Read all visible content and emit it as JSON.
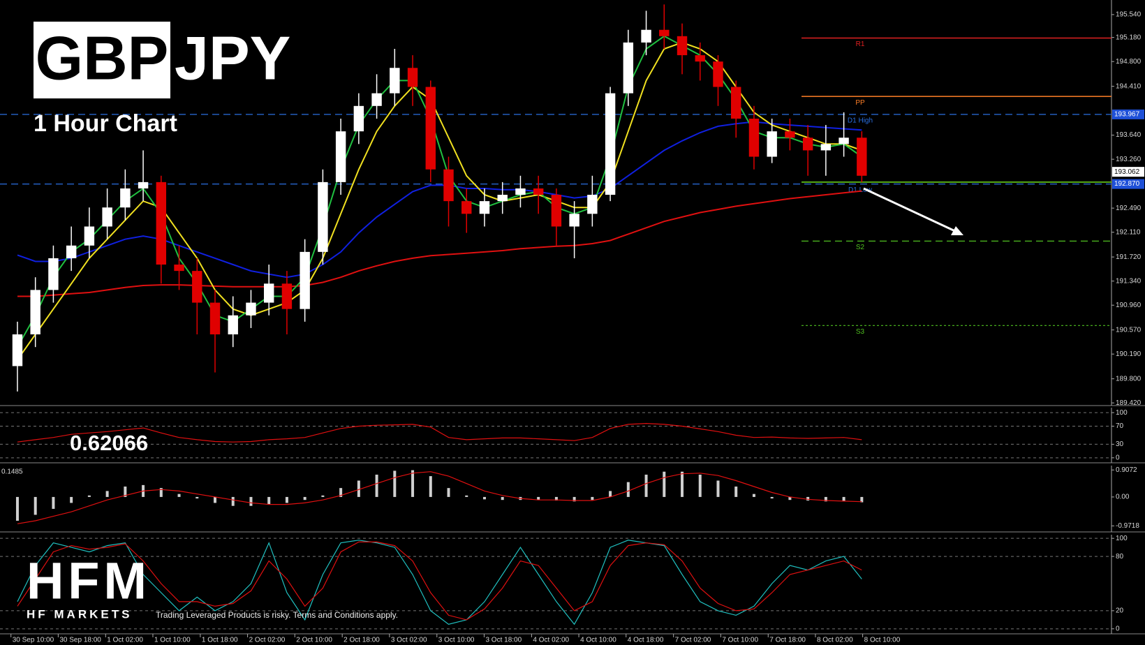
{
  "chart_data": [
    {
      "type": "candlestick",
      "open": [
        190.0,
        190.5,
        191.2,
        191.7,
        191.9,
        192.2,
        192.5,
        192.8,
        192.9,
        191.6,
        191.5,
        191.0,
        190.5,
        190.8,
        191.0,
        191.3,
        190.9,
        191.8,
        192.9,
        193.7,
        194.1,
        194.3,
        194.7,
        194.4,
        193.1,
        192.6,
        192.4,
        192.6,
        192.7,
        192.8,
        192.7,
        192.2,
        192.4,
        192.7,
        194.3,
        195.1,
        195.3,
        195.2,
        194.9,
        194.8,
        194.4,
        193.9,
        193.3,
        193.7,
        193.6,
        193.4,
        193.5,
        193.6
      ],
      "high": [
        190.7,
        191.4,
        191.9,
        192.2,
        192.5,
        192.8,
        193.1,
        193.4,
        193.0,
        191.9,
        191.7,
        191.2,
        191.1,
        191.2,
        191.6,
        191.5,
        192.0,
        193.1,
        193.9,
        194.3,
        194.6,
        195.0,
        194.9,
        194.5,
        193.3,
        192.8,
        192.8,
        192.9,
        193.0,
        193.0,
        192.8,
        192.6,
        193.0,
        194.4,
        195.3,
        195.6,
        195.7,
        195.4,
        195.1,
        194.9,
        194.5,
        194.1,
        193.9,
        193.9,
        193.8,
        193.8,
        194.0,
        193.7
      ],
      "low": [
        189.6,
        190.3,
        191.0,
        191.5,
        191.7,
        192.0,
        192.3,
        192.6,
        191.3,
        191.2,
        190.5,
        189.9,
        190.3,
        190.6,
        190.8,
        190.5,
        190.7,
        191.6,
        192.7,
        193.5,
        193.9,
        194.1,
        194.1,
        192.9,
        192.2,
        192.1,
        192.2,
        192.4,
        192.5,
        192.4,
        191.9,
        191.7,
        192.2,
        192.6,
        194.1,
        194.9,
        195.0,
        194.6,
        194.5,
        194.1,
        193.6,
        193.1,
        193.2,
        193.4,
        193.0,
        193.0,
        193.3,
        192.9
      ],
      "close": [
        190.5,
        191.2,
        191.7,
        191.9,
        192.2,
        192.5,
        192.8,
        192.9,
        191.6,
        191.5,
        191.0,
        190.5,
        190.8,
        191.0,
        191.3,
        190.9,
        191.8,
        192.9,
        193.7,
        194.1,
        194.3,
        194.7,
        194.4,
        193.1,
        192.6,
        192.4,
        192.6,
        192.7,
        192.8,
        192.7,
        192.2,
        192.4,
        192.7,
        194.3,
        195.1,
        195.3,
        195.2,
        194.9,
        194.8,
        194.4,
        193.9,
        193.3,
        193.7,
        193.6,
        193.4,
        193.5,
        193.6,
        193.0
      ],
      "up_color": "#ffffff",
      "down_color": "#e00000",
      "lines": [
        {
          "color": "#e01010",
          "values": [
            191.1,
            191.1,
            191.12,
            191.14,
            191.16,
            191.2,
            191.24,
            191.27,
            191.28,
            191.28,
            191.27,
            191.26,
            191.25,
            191.25,
            191.25,
            191.25,
            191.27,
            191.32,
            191.4,
            191.5,
            191.58,
            191.65,
            191.7,
            191.74,
            191.76,
            191.78,
            191.8,
            191.82,
            191.85,
            191.87,
            191.89,
            191.9,
            191.93,
            191.98,
            192.08,
            192.18,
            192.28,
            192.35,
            192.42,
            192.47,
            192.52,
            192.56,
            192.6,
            192.64,
            192.67,
            192.7,
            192.73,
            192.76
          ]
        },
        {
          "color": "#1020e0",
          "values": [
            191.75,
            191.65,
            191.65,
            191.7,
            191.8,
            191.9,
            192.0,
            192.05,
            192.0,
            191.9,
            191.8,
            191.7,
            191.6,
            191.5,
            191.45,
            191.4,
            191.45,
            191.6,
            191.8,
            192.1,
            192.35,
            192.55,
            192.75,
            192.85,
            192.85,
            192.8,
            192.8,
            192.78,
            192.78,
            192.75,
            192.7,
            192.65,
            192.68,
            192.8,
            193.0,
            193.2,
            193.4,
            193.55,
            193.68,
            193.78,
            193.82,
            193.85,
            193.82,
            193.8,
            193.78,
            193.76,
            193.74,
            193.72
          ]
        },
        {
          "color": "#f0e020",
          "values": [
            190.1,
            190.5,
            190.9,
            191.3,
            191.7,
            192.0,
            192.3,
            192.6,
            192.5,
            192.1,
            191.7,
            191.2,
            190.9,
            190.8,
            190.9,
            191.0,
            191.2,
            191.7,
            192.4,
            193.1,
            193.7,
            194.1,
            194.4,
            194.2,
            193.6,
            193.0,
            192.7,
            192.6,
            192.65,
            192.7,
            192.6,
            192.5,
            192.5,
            192.9,
            193.7,
            194.5,
            195.0,
            195.1,
            195.0,
            194.8,
            194.4,
            194.0,
            193.8,
            193.7,
            193.6,
            193.5,
            193.5,
            193.4
          ]
        },
        {
          "color": "#20c040",
          "values": [
            190.3,
            190.8,
            191.4,
            191.8,
            192.0,
            192.3,
            192.6,
            192.8,
            192.4,
            191.7,
            191.3,
            190.8,
            190.7,
            190.9,
            191.1,
            191.1,
            191.4,
            192.2,
            193.1,
            193.8,
            194.2,
            194.5,
            194.5,
            193.9,
            193.0,
            192.6,
            192.5,
            192.6,
            192.7,
            192.75,
            192.5,
            192.4,
            192.5,
            193.3,
            194.4,
            195.0,
            195.2,
            195.05,
            194.9,
            194.6,
            194.2,
            193.7,
            193.6,
            193.6,
            193.5,
            193.45,
            193.5,
            193.3
          ]
        }
      ],
      "levels": [
        {
          "label": "R1",
          "value": 195.17,
          "color": "#e02020",
          "style": "solid",
          "span": "right"
        },
        {
          "label": "PP",
          "value": 194.25,
          "color": "#ff7f27",
          "style": "solid",
          "span": "right"
        },
        {
          "label": "D1 High",
          "value": 193.967,
          "color": "#2a6fe0",
          "style": "dashed",
          "span": "full"
        },
        {
          "value": 192.9,
          "color": "#70e020",
          "style": "solid",
          "span": "right"
        },
        {
          "label": "D1 Low",
          "value": 192.87,
          "color": "#2a6fe0",
          "style": "dashed",
          "span": "full"
        },
        {
          "label": "S2",
          "value": 191.97,
          "color": "#50c020",
          "style": "dashed",
          "span": "right"
        },
        {
          "label": "S3",
          "value": 190.64,
          "color": "#50c020",
          "style": "dotted",
          "span": "right"
        }
      ],
      "markers": [
        {
          "value": 193.967,
          "label": "193.967",
          "color": "#1e50d8",
          "text_color": "#ffffff"
        },
        {
          "value": 193.062,
          "label": "193.062",
          "color": "#ffffff",
          "text_color": "#000000"
        },
        {
          "value": 192.87,
          "label": "192.870",
          "color": "#1e50d8",
          "text_color": "#ffffff"
        }
      ],
      "xlim": [
        -0.97,
        60.9
      ],
      "ylim": [
        189.4,
        195.77
      ],
      "yticks": [
        {
          "value": 195.54,
          "label": "195.540"
        },
        {
          "value": 195.18,
          "label": "195.180"
        },
        {
          "value": 194.8,
          "label": "194.800"
        },
        {
          "value": 194.41,
          "label": "194.410"
        },
        {
          "value": 193.64,
          "label": "193.640"
        },
        {
          "value": 193.26,
          "label": "193.260"
        },
        {
          "value": 192.49,
          "label": "192.490"
        },
        {
          "value": 192.11,
          "label": "192.110"
        },
        {
          "value": 191.72,
          "label": "191.720"
        },
        {
          "value": 191.34,
          "label": "191.340"
        },
        {
          "value": 190.96,
          "label": "190.960"
        },
        {
          "value": 190.57,
          "label": "190.570"
        },
        {
          "value": 190.19,
          "label": "190.190"
        },
        {
          "value": 189.8,
          "label": "189.800"
        },
        {
          "value": 189.42,
          "label": "189.420"
        }
      ],
      "grid": false
    },
    {
      "type": "line",
      "series": [
        {
          "color": "#e01010",
          "values": [
            35,
            40,
            45,
            52,
            55,
            58,
            62,
            66,
            55,
            45,
            40,
            36,
            35,
            36,
            40,
            42,
            45,
            55,
            65,
            70,
            72,
            73,
            74,
            68,
            45,
            40,
            42,
            44,
            44,
            42,
            40,
            38,
            45,
            65,
            74,
            76,
            74,
            70,
            64,
            58,
            50,
            45,
            46,
            44,
            43,
            44,
            45,
            40
          ]
        }
      ],
      "xlim": [
        -0.97,
        60.9
      ],
      "ylim": [
        -8,
        111
      ],
      "yticks": [
        0,
        30,
        70,
        100
      ],
      "grid": true
    },
    {
      "type": "macd",
      "title": "0.1485",
      "histogram": {
        "color": "#d0d0d0",
        "values": [
          -0.8,
          -0.6,
          -0.4,
          -0.2,
          0.05,
          0.2,
          0.35,
          0.4,
          0.3,
          0.1,
          -0.05,
          -0.2,
          -0.3,
          -0.3,
          -0.25,
          -0.2,
          -0.1,
          0.05,
          0.3,
          0.55,
          0.75,
          0.88,
          0.9,
          0.7,
          0.3,
          0.05,
          -0.08,
          -0.1,
          -0.1,
          -0.1,
          -0.12,
          -0.15,
          -0.1,
          0.2,
          0.5,
          0.75,
          0.85,
          0.85,
          0.75,
          0.55,
          0.35,
          0.1,
          -0.05,
          -0.1,
          -0.12,
          -0.15,
          -0.15,
          -0.18
        ]
      },
      "series": [
        {
          "color": "#e01010",
          "values": [
            -0.9,
            -0.8,
            -0.65,
            -0.5,
            -0.3,
            -0.1,
            0.05,
            0.2,
            0.25,
            0.2,
            0.1,
            0,
            -0.1,
            -0.2,
            -0.25,
            -0.25,
            -0.2,
            -0.1,
            0.05,
            0.25,
            0.45,
            0.65,
            0.8,
            0.85,
            0.7,
            0.45,
            0.2,
            0.05,
            -0.05,
            -0.1,
            -0.1,
            -0.12,
            -0.12,
            0,
            0.2,
            0.45,
            0.65,
            0.78,
            0.8,
            0.72,
            0.55,
            0.35,
            0.15,
            0,
            -0.08,
            -0.12,
            -0.14,
            -0.16
          ]
        }
      ],
      "xlim": [
        -0.97,
        60.9
      ],
      "ylim": [
        -1.128,
        1.054
      ],
      "yticks": [
        0.9072,
        {
          "value": 0,
          "label": "0.00"
        },
        -0.9718
      ],
      "grid": false
    },
    {
      "type": "line",
      "series": [
        {
          "color": "#20c0c0",
          "values": [
            30,
            70,
            95,
            90,
            85,
            92,
            95,
            60,
            40,
            20,
            35,
            20,
            30,
            50,
            95,
            40,
            10,
            60,
            95,
            98,
            95,
            90,
            60,
            20,
            5,
            10,
            30,
            60,
            90,
            60,
            30,
            5,
            40,
            90,
            98,
            95,
            92,
            60,
            30,
            20,
            15,
            25,
            50,
            70,
            65,
            75,
            80,
            55
          ]
        },
        {
          "color": "#e01010",
          "values": [
            25,
            55,
            85,
            92,
            88,
            90,
            94,
            75,
            50,
            30,
            30,
            25,
            28,
            42,
            75,
            55,
            25,
            45,
            85,
            96,
            96,
            92,
            75,
            40,
            15,
            10,
            22,
            45,
            75,
            70,
            45,
            20,
            30,
            70,
            92,
            95,
            93,
            75,
            45,
            28,
            20,
            22,
            40,
            60,
            65,
            70,
            75,
            65
          ]
        }
      ],
      "xlim": [
        -0.97,
        60.9
      ],
      "ylim": [
        -4,
        104
      ],
      "yticks": [
        0,
        20,
        80,
        100
      ],
      "grid": true,
      "xticks": [
        {
          "value": -0.36,
          "label": "30 Sep 10:00"
        },
        {
          "value": 2.27,
          "label": "30 Sep 18:00"
        },
        {
          "value": 4.91,
          "label": "1 Oct 02:00"
        },
        {
          "value": 7.54,
          "label": "1 Oct 10:00"
        },
        {
          "value": 10.18,
          "label": "1 Oct 18:00"
        },
        {
          "value": 12.81,
          "label": "2 Oct 02:00"
        },
        {
          "value": 15.44,
          "label": "2 Oct 10:00"
        },
        {
          "value": 18.08,
          "label": "2 Oct 18:00"
        },
        {
          "value": 20.71,
          "label": "3 Oct 02:00"
        },
        {
          "value": 23.35,
          "label": "3 Oct 10:00"
        },
        {
          "value": 25.98,
          "label": "3 Oct 18:00"
        },
        {
          "value": 28.62,
          "label": "4 Oct 02:00"
        },
        {
          "value": 31.25,
          "label": "4 Oct 10:00"
        },
        {
          "value": 33.88,
          "label": "4 Oct 18:00"
        },
        {
          "value": 36.52,
          "label": "7 Oct 02:00"
        },
        {
          "value": 39.15,
          "label": "7 Oct 10:00"
        },
        {
          "value": 41.79,
          "label": "7 Oct 18:00"
        },
        {
          "value": 44.42,
          "label": "8 Oct 02:00"
        },
        {
          "value": 47.05,
          "label": "8 Oct 10:00"
        }
      ]
    }
  ],
  "overlay": {
    "symbol_base": "GBP",
    "symbol_quote": "JPY",
    "subtitle": "1 Hour Chart",
    "value": "0.62066",
    "logo": "HFM",
    "brand": "HF MARKETS",
    "disclaimer": "Trading Leveraged Products is risky. Terms and Conditions apply."
  }
}
